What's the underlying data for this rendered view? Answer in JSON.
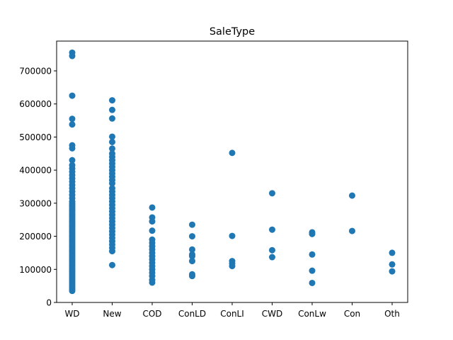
{
  "chart_data": {
    "type": "scatter",
    "title": "SaleType",
    "xlabel": "",
    "ylabel": "",
    "categories": [
      "WD",
      "New",
      "COD",
      "ConLD",
      "ConLI",
      "CWD",
      "ConLw",
      "Con",
      "Oth"
    ],
    "ylim": [
      0,
      790000
    ],
    "yticks": [
      0,
      100000,
      200000,
      300000,
      400000,
      500000,
      600000,
      700000
    ],
    "ytick_labels": [
      "0",
      "100000",
      "200000",
      "300000",
      "400000",
      "500000",
      "600000",
      "700000"
    ],
    "grid": false,
    "marker_color": "#1f77b4",
    "series": [
      {
        "name": "WD",
        "values": [
          755000,
          745000,
          625000,
          555000,
          538000,
          475000,
          466000,
          430000,
          415000,
          405000,
          395000,
          385000,
          375000,
          365000,
          355000,
          345000,
          335000,
          325000,
          315000,
          305000,
          300000,
          295000,
          290000,
          285000,
          280000,
          275000,
          270000,
          265000,
          260000,
          255000,
          250000,
          245000,
          240000,
          235000,
          230000,
          225000,
          220000,
          215000,
          210000,
          205000,
          200000,
          195000,
          190000,
          185000,
          180000,
          175000,
          170000,
          165000,
          160000,
          155000,
          150000,
          145000,
          140000,
          135000,
          130000,
          125000,
          120000,
          115000,
          110000,
          105000,
          100000,
          95000,
          90000,
          85000,
          80000,
          75000,
          70000,
          65000,
          60000,
          55000,
          50000,
          45000,
          40000,
          35000
        ]
      },
      {
        "name": "New",
        "values": [
          611000,
          582000,
          556000,
          501000,
          485000,
          465000,
          450000,
          440000,
          430000,
          420000,
          410000,
          400000,
          390000,
          380000,
          370000,
          360000,
          345000,
          335000,
          325000,
          315000,
          305000,
          295000,
          285000,
          275000,
          265000,
          255000,
          245000,
          235000,
          225000,
          215000,
          205000,
          195000,
          185000,
          175000,
          165000,
          155000,
          113000
        ]
      },
      {
        "name": "COD",
        "values": [
          287000,
          257000,
          245000,
          217000,
          190000,
          180000,
          170000,
          160000,
          150000,
          140000,
          130000,
          120000,
          110000,
          100000,
          90000,
          80000,
          68000,
          60000
        ]
      },
      {
        "name": "ConLD",
        "values": [
          235000,
          200000,
          160000,
          145000,
          140000,
          125000,
          85000,
          80000
        ]
      },
      {
        "name": "ConLI",
        "values": [
          452000,
          201000,
          125000,
          118000,
          110000
        ]
      },
      {
        "name": "CWD",
        "values": [
          330000,
          220000,
          158000,
          137000
        ]
      },
      {
        "name": "ConLw",
        "values": [
          212000,
          207000,
          145000,
          96000,
          59000
        ]
      },
      {
        "name": "Con",
        "values": [
          323000,
          216000
        ]
      },
      {
        "name": "Oth",
        "values": [
          150000,
          115000,
          94000
        ]
      }
    ]
  }
}
